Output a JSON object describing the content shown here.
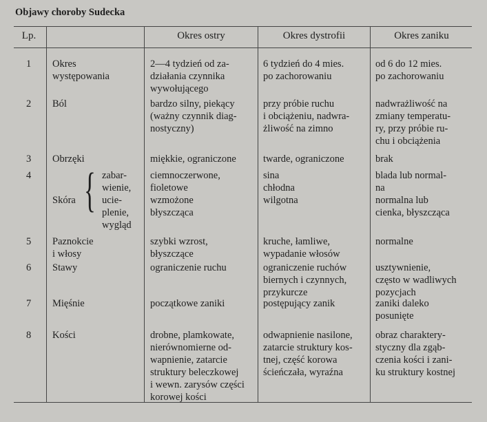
{
  "title": "Objawy choroby Sudecka",
  "headers": [
    "Lp.",
    "",
    "Okres ostry",
    "Okres dystrofii",
    "Okres zaniku"
  ],
  "rows": [
    {
      "lp": "1",
      "label": [
        "Okres",
        "występowania"
      ],
      "ostry": [
        "2—4 tydzień od za-",
        "działania czynnika",
        "wywołującego"
      ],
      "dystrofii": [
        "6 tydzień do 4 mies.",
        "po zachorowaniu"
      ],
      "zaniku": [
        "od 6 do 12 mies.",
        "po zachorowaniu"
      ]
    },
    {
      "lp": "2",
      "label": [
        "Ból"
      ],
      "ostry": [
        "bardzo silny, piekący",
        "(ważny czynnik diag-",
        "nostyczny)"
      ],
      "dystrofii": [
        "przy próbie ruchu",
        "i obciążeniu, nadwra-",
        "żliwość na zimno"
      ],
      "zaniku": [
        "nadwrażliwość na",
        "zmiany temperatu-",
        "ry, przy próbie ru-",
        "chu i obciążenia"
      ]
    },
    {
      "lp": "3",
      "label": [
        "Obrzęki"
      ],
      "ostry": [
        "miękkie, ograniczone"
      ],
      "dystrofii": [
        "twarde, ograniczone"
      ],
      "zaniku": [
        "brak"
      ]
    },
    {
      "lp": "4",
      "label": [
        "Skóra"
      ],
      "sublabels": [
        "zabar-",
        "wienie,",
        "ucie-",
        "plenie,",
        "wygląd"
      ],
      "ostry": [
        "ciemnoczerwone,",
        "fioletowe",
        "wzmożone",
        "błyszcząca"
      ],
      "dystrofii": [
        "sina",
        "chłodna",
        "wilgotna"
      ],
      "zaniku": [
        "blada lub normal-",
        "na",
        "normalna lub",
        "cienka, błyszcząca"
      ]
    },
    {
      "lp": "5",
      "label": [
        "Paznokcie",
        "i włosy"
      ],
      "ostry": [
        "szybki wzrost,",
        "błyszczące"
      ],
      "dystrofii": [
        "kruche, łamliwe,",
        "wypadanie włosów"
      ],
      "zaniku": [
        "normalne"
      ]
    },
    {
      "lp": "6",
      "label": [
        "Stawy"
      ],
      "ostry": [
        "ograniczenie ruchu"
      ],
      "dystrofii": [
        "ograniczenie ruchów",
        "biernych i czynnych,",
        "przykurcze"
      ],
      "zaniku": [
        "usztywnienie,",
        "często w wadliwych",
        "pozycjach"
      ]
    },
    {
      "lp": "7",
      "label": [
        "Mięśnie"
      ],
      "ostry": [
        "początkowe zaniki"
      ],
      "dystrofii": [
        "postępujący zanik"
      ],
      "zaniku": [
        "zaniki daleko",
        "posunięte"
      ]
    },
    {
      "lp": "8",
      "label": [
        "Kości"
      ],
      "ostry": [
        "drobne, plamkowate,",
        "nierównomierne od-",
        "wapnienie, zatarcie",
        "struktury beleczkowej",
        "i wewn. zarysów części",
        "korowej kości"
      ],
      "dystrofii": [
        "odwapnienie nasilone,",
        "zatarcie struktury kos-",
        "tnej, część korowa",
        "ścieńczała, wyraźna"
      ],
      "zaniku": [
        "obraz charaktery-",
        "styczny dla zgąb-",
        "czenia kości i zani-",
        "ku struktury kostnej"
      ]
    }
  ]
}
